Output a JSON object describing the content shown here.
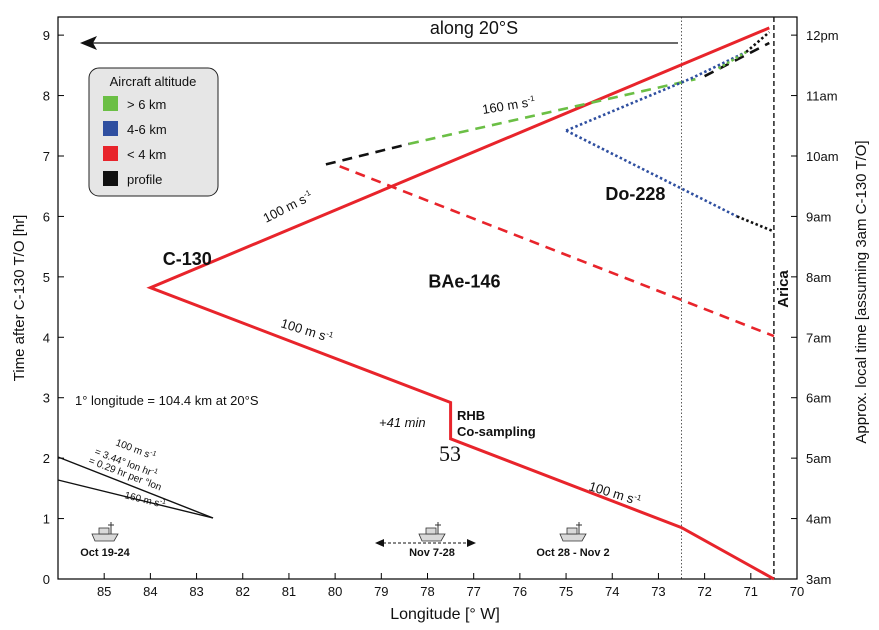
{
  "chart_data": {
    "type": "line",
    "title": "",
    "xlabel": "Longitude [° W]",
    "ylabel_left": "Time after C-130 T/O [hr]",
    "ylabel_right": "Approx. local time [assuming 3am C-130 T/O]",
    "xlim": [
      86,
      70
    ],
    "ylim": [
      0,
      9.3
    ],
    "x_ticks": [
      "85",
      "84",
      "83",
      "82",
      "81",
      "80",
      "79",
      "78",
      "77",
      "76",
      "75",
      "74",
      "73",
      "72",
      "71",
      "70"
    ],
    "y_ticks": [
      "0",
      "1",
      "2",
      "3",
      "4",
      "5",
      "6",
      "7",
      "8",
      "9"
    ],
    "y_right_ticks": [
      "3am",
      "4am",
      "5am",
      "6am",
      "7am",
      "8am",
      "9am",
      "10am",
      "11am",
      "12pm"
    ],
    "colors": {
      "above_6km": "#6bbf45",
      "4_6km": "#2f4fa0",
      "below_4km": "#e8242b",
      "profile": "#111111"
    },
    "legend": {
      "title": "Aircraft altitude",
      "position": "top-left",
      "items": [
        {
          "label": "> 6 km",
          "color": "#6bbf45"
        },
        {
          "label": "4-6 km",
          "color": "#2f4fa0"
        },
        {
          "label": "< 4 km",
          "color": "#e8242b"
        },
        {
          "label": "profile",
          "color": "#111111"
        }
      ]
    },
    "series": [
      {
        "name": "C-130",
        "style": "solid",
        "color": "#e8242b",
        "points": [
          [
            70.5,
            0
          ],
          [
            72.5,
            0.85
          ],
          [
            77.5,
            2.32
          ],
          [
            77.5,
            2.92
          ],
          [
            84.0,
            4.82
          ],
          [
            70.6,
            9.12
          ]
        ]
      },
      {
        "name": "BAe-146",
        "style": "dashed",
        "color": "#e8242b",
        "points": [
          [
            79.9,
            6.83
          ],
          [
            70.5,
            4.02
          ]
        ]
      },
      {
        "name": "BAe-146",
        "style": "dashed",
        "color": "#111111",
        "points": [
          [
            80.2,
            6.86
          ],
          [
            78.4,
            7.2
          ]
        ]
      },
      {
        "name": "BAe-146",
        "style": "dashed",
        "color": "#6bbf45",
        "points": [
          [
            78.4,
            7.2
          ],
          [
            72.2,
            8.27
          ]
        ]
      },
      {
        "name": "BAe-146",
        "style": "dashed",
        "color": "#111111",
        "points": [
          [
            72.0,
            8.32
          ],
          [
            70.6,
            8.87
          ]
        ]
      },
      {
        "name": "Do-228",
        "style": "dotted",
        "color": "#2f4fa0",
        "points": [
          [
            75.0,
            7.42
          ],
          [
            72.3,
            8.28
          ],
          [
            71.1,
            8.72
          ]
        ]
      },
      {
        "name": "Do-228",
        "style": "dotted",
        "color": "#6bbf45",
        "points": [
          [
            71.7,
            8.45
          ],
          [
            71.1,
            8.72
          ]
        ]
      },
      {
        "name": "Do-228",
        "style": "dotted",
        "color": "#111111",
        "points": [
          [
            71.1,
            8.72
          ],
          [
            70.6,
            9.05
          ]
        ]
      },
      {
        "name": "Do-228",
        "style": "dotted",
        "color": "#2f4fa0",
        "points": [
          [
            75.0,
            7.42
          ],
          [
            71.3,
            6.0
          ]
        ]
      },
      {
        "name": "Do-228",
        "style": "dotted",
        "color": "#111111",
        "points": [
          [
            71.3,
            6.0
          ],
          [
            70.5,
            5.75
          ]
        ]
      }
    ],
    "aircraft_labels": [
      {
        "text": "C-130",
        "x": 83.2,
        "y": 5.2
      },
      {
        "text": "BAe-146",
        "x": 77.2,
        "y": 4.82
      },
      {
        "text": "Do-228",
        "x": 73.5,
        "y": 6.27
      }
    ],
    "annotations": {
      "along": "along 20°S",
      "arica": "Arica",
      "speed_label": "100 m s",
      "speed_label_fast": "160 m s",
      "speed_exp": "-1",
      "conversion": "1° longitude = 104.4 km at 20°S",
      "wait": "+41 min",
      "rhb_1": "RHB",
      "rhb_2": "Co-sampling",
      "point_53": "53",
      "scale_1": "100 m s",
      "scale_2": "= 3.44° lon hr",
      "scale_3": "= 0.29 hr per °lon",
      "scale_4": "160 m s",
      "ships": [
        "Oct 19-24",
        "Nov 7-28",
        "Oct 28 - Nov 2"
      ]
    }
  }
}
